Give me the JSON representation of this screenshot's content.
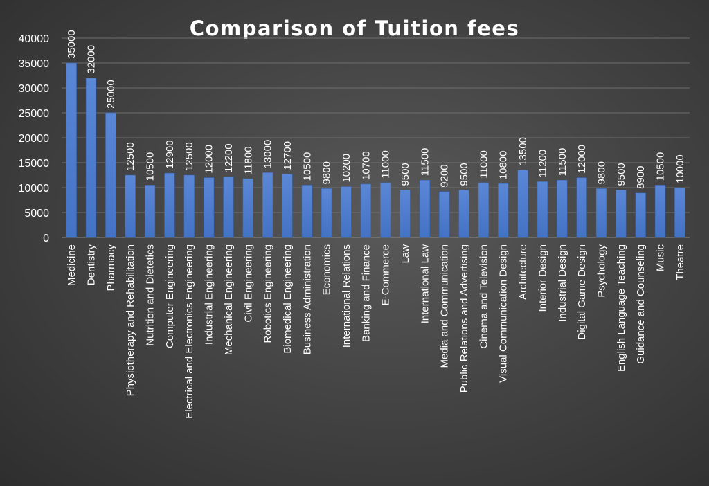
{
  "chart_data": {
    "type": "bar",
    "title": "Comparison of Tuition fees",
    "xlabel": "",
    "ylabel": "",
    "ylim": [
      0,
      40000
    ],
    "yticks": [
      0,
      5000,
      10000,
      15000,
      20000,
      25000,
      30000,
      35000,
      40000
    ],
    "grid": true,
    "bar_color": "#4472C4",
    "categories": [
      "Medicine",
      "Dentistry",
      "Pharmacy",
      "Physiotherapy and Rehabilitation",
      "Nutrition and Dietetics",
      "Computer Engineering",
      "Electrical and Electronics Engineering",
      "Industrial Engineering",
      "Mechanical Engineering",
      "Civil Engineering",
      "Robotics Engineering",
      "Biomedical Engineering",
      "Business Administration",
      "Economics",
      "International Relations",
      "Banking and Finance",
      "E-Commerce",
      "Law",
      "International Law",
      "Media and Communication",
      "Public Relations and Advertising",
      "Cinema and Television",
      "Visual Communication Design",
      "Architecture",
      "Interior Design",
      "Industrial Design",
      "Digital Game Design",
      "Psychology",
      "English Language Teaching",
      "Guidance and Counseling",
      "Music",
      "Theatre"
    ],
    "values": [
      35000,
      32000,
      25000,
      12500,
      10500,
      12900,
      12500,
      12000,
      12200,
      11800,
      13000,
      12700,
      10500,
      9800,
      10200,
      10700,
      11000,
      9500,
      11500,
      9200,
      9500,
      11000,
      10800,
      13500,
      11200,
      11500,
      12000,
      9800,
      9500,
      8900,
      10500,
      10000
    ]
  }
}
